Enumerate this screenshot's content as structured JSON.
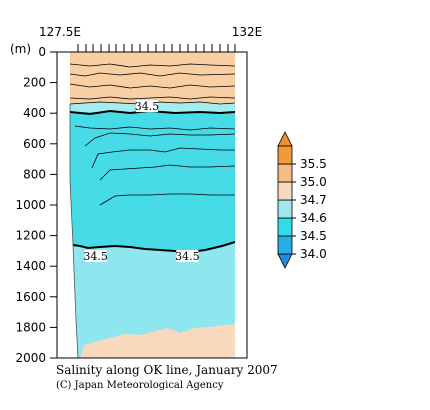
{
  "chart_data": {
    "type": "heatmap",
    "title": "Salinity along OK line, January 2007",
    "credit": "(C) Japan Meteorological Agency",
    "y_unit": "(m)",
    "x_tick_labels": [
      "127.5E",
      "132E"
    ],
    "xlim": [
      127.5,
      132
    ],
    "ylim": [
      2000,
      0
    ],
    "y_ticks": [
      0,
      200,
      400,
      600,
      800,
      1000,
      1200,
      1400,
      1600,
      1800,
      2000
    ],
    "contour_labels": [
      {
        "text": "34.5",
        "depth": 360,
        "lon": 129.6
      },
      {
        "text": "34.5",
        "depth": 1340,
        "lon": 128.2
      },
      {
        "text": "34.5",
        "depth": 1340,
        "lon": 130.7
      }
    ],
    "colorbar": {
      "levels": [
        34.0,
        34.5,
        34.6,
        34.7,
        35.0,
        35.5
      ],
      "labels": [
        "34.0",
        "34.5",
        "34.6",
        "34.7",
        "35.0",
        "35.5"
      ],
      "colors": [
        "#29aee8",
        "#33dbe8",
        "#9ee8ee",
        "#f7d9bd",
        "#f5bc86",
        "#f29a3a"
      ],
      "extend_low_color": "#1f8be0",
      "extend_high_color": "#ee9030"
    },
    "fill_colors": {
      "surface_layer": "#f8cfa2",
      "transition_layer": "#a5ecef",
      "intermediate_layer": "#47dbe8",
      "deep_layer": "#8ee6ef",
      "bottom_layer": "#f8d9bd"
    }
  }
}
